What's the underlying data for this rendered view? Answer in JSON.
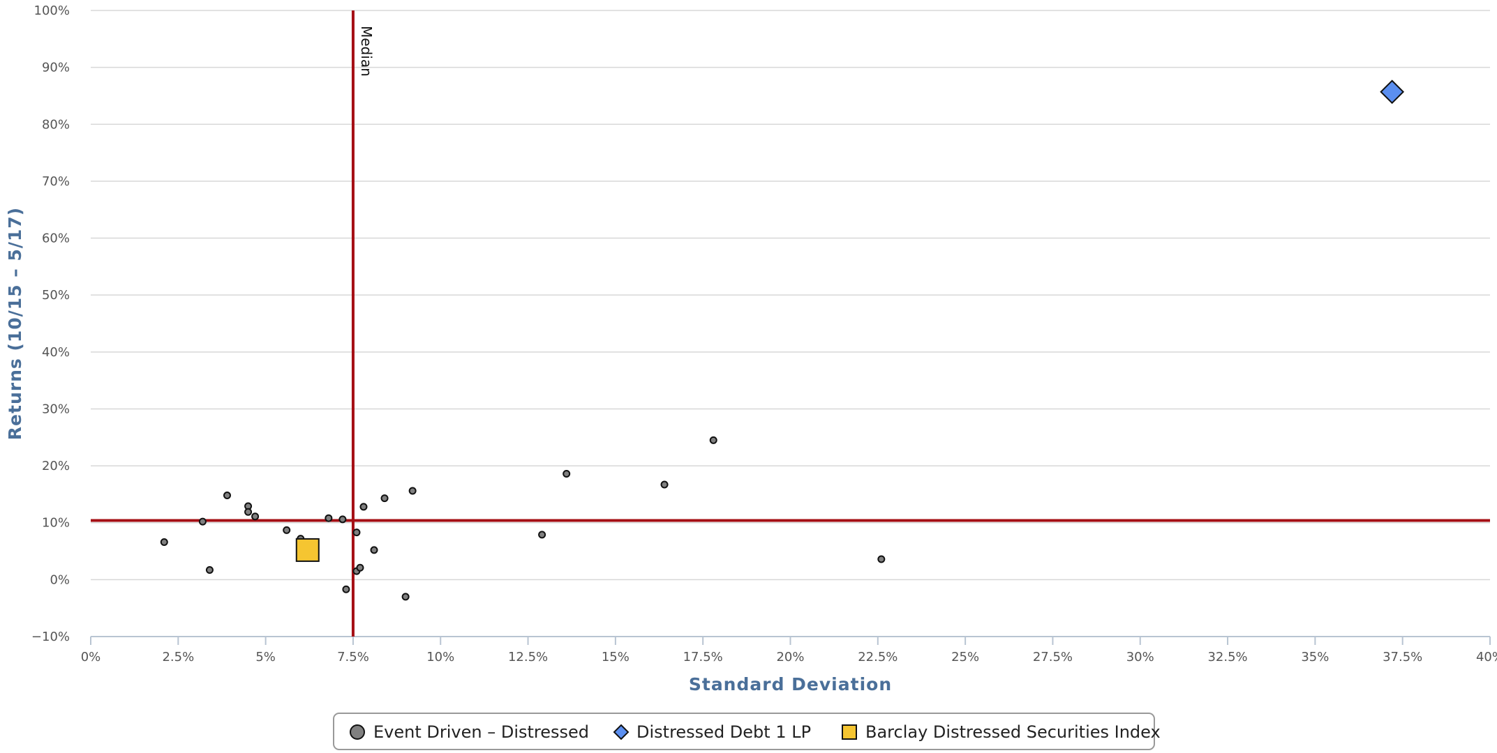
{
  "chart_data": {
    "type": "scatter",
    "xlabel": "Standard Deviation",
    "ylabel": "Returns (10/15 – 5/17)",
    "xlim": [
      0,
      40
    ],
    "ylim": [
      -10,
      100
    ],
    "x_ticks": [
      {
        "value": 0,
        "label": "0%"
      },
      {
        "value": 2.5,
        "label": "2.5%"
      },
      {
        "value": 5,
        "label": "5%"
      },
      {
        "value": 7.5,
        "label": "7.5%"
      },
      {
        "value": 10,
        "label": "10%"
      },
      {
        "value": 12.5,
        "label": "12.5%"
      },
      {
        "value": 15,
        "label": "15%"
      },
      {
        "value": 17.5,
        "label": "17.5%"
      },
      {
        "value": 20,
        "label": "20%"
      },
      {
        "value": 22.5,
        "label": "22.5%"
      },
      {
        "value": 25,
        "label": "25%"
      },
      {
        "value": 27.5,
        "label": "27.5%"
      },
      {
        "value": 30,
        "label": "30%"
      },
      {
        "value": 32.5,
        "label": "32.5%"
      },
      {
        "value": 35,
        "label": "35%"
      },
      {
        "value": 37.5,
        "label": "37.5%"
      },
      {
        "value": 40,
        "label": "40%"
      }
    ],
    "y_ticks": [
      {
        "value": -10,
        "label": "−10%"
      },
      {
        "value": 0,
        "label": "0%"
      },
      {
        "value": 10,
        "label": "10%"
      },
      {
        "value": 20,
        "label": "20%"
      },
      {
        "value": 30,
        "label": "30%"
      },
      {
        "value": 40,
        "label": "40%"
      },
      {
        "value": 50,
        "label": "50%"
      },
      {
        "value": 60,
        "label": "60%"
      },
      {
        "value": 70,
        "label": "70%"
      },
      {
        "value": 80,
        "label": "80%"
      },
      {
        "value": 90,
        "label": "90%"
      },
      {
        "value": 100,
        "label": "100%"
      }
    ],
    "grid": "horizontal",
    "median_lines": {
      "x": 7.5,
      "y": 10.4,
      "label": "Median",
      "color": "#a50f15"
    },
    "legend_position": "bottom-center",
    "series": [
      {
        "name": "Event Driven – Distressed",
        "marker": "circle",
        "color": "#808080",
        "points": [
          {
            "x": 2.1,
            "y": 6.6
          },
          {
            "x": 3.2,
            "y": 10.2
          },
          {
            "x": 3.4,
            "y": 1.7
          },
          {
            "x": 3.9,
            "y": 14.8
          },
          {
            "x": 4.5,
            "y": 12.9
          },
          {
            "x": 4.5,
            "y": 11.9
          },
          {
            "x": 4.7,
            "y": 11.1
          },
          {
            "x": 5.6,
            "y": 8.7
          },
          {
            "x": 6.0,
            "y": 7.2
          },
          {
            "x": 6.8,
            "y": 10.8
          },
          {
            "x": 7.2,
            "y": 10.6
          },
          {
            "x": 7.3,
            "y": -1.7
          },
          {
            "x": 7.6,
            "y": 8.3
          },
          {
            "x": 7.6,
            "y": 1.5
          },
          {
            "x": 7.7,
            "y": 2.1
          },
          {
            "x": 7.8,
            "y": 12.8
          },
          {
            "x": 8.1,
            "y": 5.2
          },
          {
            "x": 8.4,
            "y": 14.3
          },
          {
            "x": 9.0,
            "y": -3.0
          },
          {
            "x": 9.2,
            "y": 15.6
          },
          {
            "x": 12.9,
            "y": 7.9
          },
          {
            "x": 13.6,
            "y": 18.6
          },
          {
            "x": 16.4,
            "y": 16.7
          },
          {
            "x": 17.8,
            "y": 24.5
          },
          {
            "x": 22.6,
            "y": 3.6
          }
        ]
      },
      {
        "name": "Distressed Debt 1 LP",
        "marker": "diamond",
        "color": "#5b8ff0",
        "points": [
          {
            "x": 37.2,
            "y": 85.7
          }
        ]
      },
      {
        "name": "Barclay Distressed Securities Index",
        "marker": "square",
        "color": "#f5c531",
        "points": [
          {
            "x": 6.2,
            "y": 5.2
          }
        ]
      }
    ]
  }
}
